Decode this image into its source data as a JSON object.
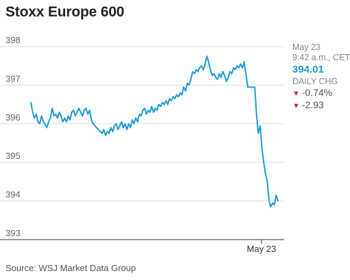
{
  "header": {
    "title": "Stoxx Europe 600"
  },
  "quote": {
    "date": "May 23",
    "time": "9:42 a.m., CET",
    "price": "394.01",
    "daily_label": "DAILY CHG",
    "change_pct": "-0.74%",
    "change_pts": "-2.93",
    "down_icon": "triangle-down-icon"
  },
  "footer": {
    "source": "Source: WSJ Market Data Group"
  },
  "colors": {
    "line": "#1a9bd7",
    "down": "#d9262a",
    "grid": "#dddddd"
  },
  "chart_data": {
    "type": "line",
    "title": "Stoxx Europe 600",
    "xlabel": "",
    "ylabel": "",
    "ylim": [
      393,
      398
    ],
    "yticks": [
      393,
      394,
      395,
      396,
      397,
      398
    ],
    "x_tick_labels": [
      "May 23"
    ],
    "grid": true,
    "series": [
      {
        "name": "",
        "values": [
          396.55,
          396.3,
          396.15,
          396.25,
          396.05,
          396.0,
          396.2,
          396.05,
          396.0,
          395.9,
          396.05,
          396.15,
          396.4,
          396.2,
          396.25,
          396.15,
          396.3,
          396.2,
          396.05,
          396.15,
          396.05,
          396.2,
          396.1,
          396.3,
          396.35,
          396.2,
          396.3,
          396.4,
          396.3,
          396.2,
          396.35,
          396.4,
          396.25,
          396.35,
          396.1,
          396.0,
          395.95,
          395.9,
          395.85,
          395.8,
          395.75,
          395.85,
          395.7,
          395.8,
          395.75,
          395.9,
          395.8,
          395.95,
          396.0,
          395.85,
          395.95,
          396.05,
          395.9,
          396.0,
          395.85,
          396.0,
          395.9,
          396.1,
          396.0,
          396.15,
          396.05,
          396.25,
          396.2,
          396.35,
          396.4,
          396.25,
          396.35,
          396.3,
          396.45,
          396.3,
          396.4,
          396.35,
          396.5,
          396.45,
          396.55,
          396.5,
          396.6,
          396.5,
          396.65,
          396.6,
          396.7,
          396.65,
          396.75,
          396.7,
          396.8,
          396.75,
          396.95,
          396.85,
          397.05,
          397.0,
          397.15,
          397.35,
          397.3,
          397.4,
          397.35,
          397.45,
          397.5,
          397.4,
          397.55,
          397.75,
          397.6,
          397.4,
          397.25,
          397.3,
          397.2,
          397.15,
          397.3,
          397.2,
          397.35,
          397.25,
          397.1,
          397.2,
          397.35,
          397.3,
          397.45,
          397.4,
          397.5,
          397.45,
          397.55,
          397.45,
          397.6,
          397.3,
          396.95,
          396.95,
          396.95,
          396.95,
          396.95,
          396.2,
          395.75,
          395.95,
          395.35,
          395.0,
          394.7,
          394.5,
          394.0,
          393.85,
          393.95,
          393.9,
          394.15,
          394.01
        ]
      }
    ]
  }
}
